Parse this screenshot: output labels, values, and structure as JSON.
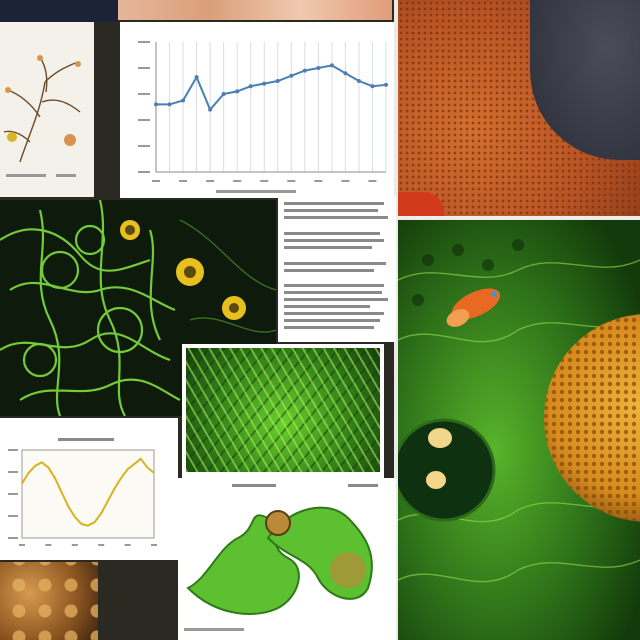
{
  "collage": {
    "description_visible_text": "",
    "top_left_caption": "",
    "line_chart": {
      "title": "",
      "xlabel": "",
      "ylabel": ""
    },
    "wave_chart": {
      "title": "",
      "xlabel": "",
      "ylabel": ""
    },
    "text_block_heading": "",
    "lower_caption": ""
  },
  "colors": {
    "leaf_green": "#7ad43a",
    "dark_bg": "#0e1a0c",
    "orange_sponge": "#c8622a",
    "yellow_accent": "#e8c01e",
    "wave_line": "#d9b21c",
    "chart_line": "#4a7fb5"
  },
  "chart_data": [
    {
      "type": "line",
      "title": "",
      "xlabel": "",
      "ylabel": "",
      "x": [
        1,
        2,
        3,
        4,
        5,
        6,
        7,
        8,
        9,
        10,
        11,
        12,
        13,
        14,
        15,
        16,
        17,
        18
      ],
      "series": [
        {
          "values": [
            52,
            52,
            55,
            73,
            48,
            60,
            62,
            66,
            68,
            70,
            74,
            78,
            80,
            82,
            76,
            70,
            66,
            67
          ]
        }
      ],
      "ylim": [
        0,
        100
      ],
      "grid": true
    },
    {
      "type": "line",
      "title": "",
      "xlabel": "",
      "ylabel": "",
      "x": [
        0,
        1,
        2,
        3,
        4,
        5,
        6,
        7,
        8,
        9,
        10,
        11,
        12,
        13,
        14,
        15,
        16,
        17,
        18,
        19,
        20
      ],
      "series": [
        {
          "values": [
            62,
            74,
            82,
            86,
            80,
            68,
            52,
            36,
            24,
            16,
            14,
            18,
            28,
            42,
            56,
            68,
            78,
            84,
            90,
            80,
            74
          ]
        }
      ],
      "ylim": [
        0,
        100
      ],
      "grid": false
    }
  ]
}
